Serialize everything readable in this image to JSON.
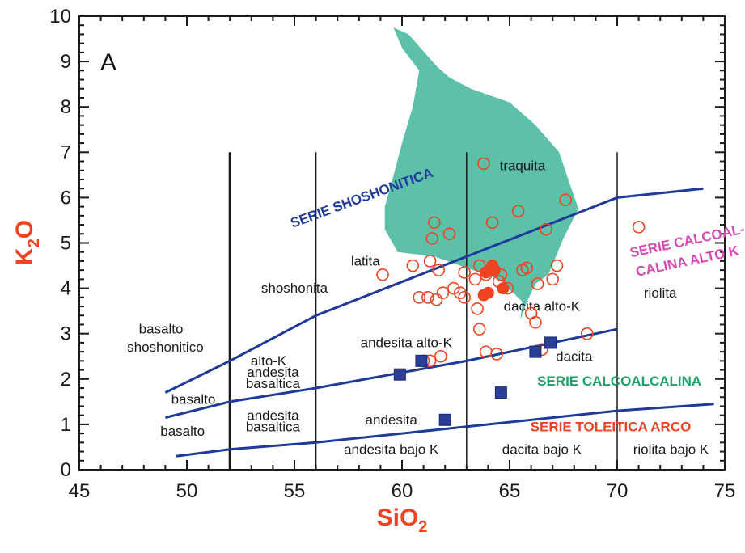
{
  "chart_data": {
    "type": "scatter",
    "panel_label": "A",
    "xlabel": "SiO",
    "xlabel_sub": "2",
    "ylabel": "K",
    "ylabel_sub": "2",
    "ylabel_tail": "O",
    "xlim": [
      45,
      75
    ],
    "ylim": [
      0,
      10
    ],
    "x_ticks": [
      45,
      50,
      55,
      60,
      65,
      70,
      75
    ],
    "y_ticks": [
      0,
      1,
      2,
      3,
      4,
      5,
      6,
      7,
      8,
      9,
      10
    ],
    "grid": false,
    "colors": {
      "axis": "#1a1a1a",
      "series_line": "#1f3a9a",
      "points": "#ee4422",
      "squares": "#2a3f95",
      "region": "#5cc1a8",
      "axis_title": "#ee4422",
      "shoshonitica": "#1f3a9a",
      "calcoalcalina_alto_k": "#d54bb3",
      "calcoalcalina": "#1aa368",
      "toleitica": "#ee4422"
    },
    "field_labels": [
      {
        "text": "basalto",
        "x": 48.8,
        "y": 3.0
      },
      {
        "text": "shoshonitico",
        "x": 49.0,
        "y": 2.6
      },
      {
        "text": "shoshonita",
        "x": 55.0,
        "y": 3.9
      },
      {
        "text": "latita",
        "x": 58.3,
        "y": 4.5
      },
      {
        "text": "traquita",
        "x": 65.6,
        "y": 6.6
      },
      {
        "text": "riolita",
        "x": 72.0,
        "y": 3.8
      },
      {
        "text": "alto-K",
        "x": 53.8,
        "y": 2.3
      },
      {
        "text": "andesita",
        "x": 54.0,
        "y": 2.05
      },
      {
        "text": "basaltica",
        "x": 54.0,
        "y": 1.8
      },
      {
        "text": "andesita alto-K",
        "x": 60.2,
        "y": 2.7
      },
      {
        "text": "dacita alto-K",
        "x": 66.5,
        "y": 3.5
      },
      {
        "text": "dacita",
        "x": 68.0,
        "y": 2.4
      },
      {
        "text": "basalto",
        "x": 50.3,
        "y": 1.45
      },
      {
        "text": "basalto",
        "x": 49.8,
        "y": 0.75
      },
      {
        "text": "andesita",
        "x": 54.0,
        "y": 1.1
      },
      {
        "text": "basaltica",
        "x": 54.0,
        "y": 0.85
      },
      {
        "text": "andesita",
        "x": 59.5,
        "y": 1.0
      },
      {
        "text": "andesita bajo K",
        "x": 59.5,
        "y": 0.35
      },
      {
        "text": "dacita bajo K",
        "x": 66.5,
        "y": 0.35
      },
      {
        "text": "riolita bajo K",
        "x": 72.5,
        "y": 0.35
      }
    ],
    "series_labels": [
      {
        "text": "SERIE SHOSHONITICA",
        "x": 58.2,
        "y": 5.9,
        "rotate": -20,
        "color_key": "shoshonitica"
      },
      {
        "text": "SERIE CALCOAL-",
        "x": 73.3,
        "y": 4.95,
        "rotate": -12,
        "color_key": "calcoalcalina_alto_k"
      },
      {
        "text": "CALINA ALTO K",
        "x": 73.3,
        "y": 4.5,
        "rotate": -12,
        "color_key": "calcoalcalina_alto_k"
      },
      {
        "text": "SERIE CALCOALCALINA",
        "x": 70.1,
        "y": 1.85,
        "rotate": 0,
        "color_key": "calcoalcalina"
      },
      {
        "text": "SERIE TOLEITICA ARCO",
        "x": 69.7,
        "y": 0.85,
        "rotate": 0,
        "color_key": "toleitica"
      }
    ],
    "vertical_lines": [
      {
        "x": 52,
        "y0": 0,
        "y1": 7.0,
        "width": 3
      },
      {
        "x": 56,
        "y0": 0,
        "y1": 7.0,
        "width": 1.5
      },
      {
        "x": 63,
        "y0": 0,
        "y1": 7.0,
        "width": 1.5
      },
      {
        "x": 70,
        "y0": 0,
        "y1": 7.0,
        "width": 1.5
      }
    ],
    "boundary_lines": [
      {
        "name": "shoshonitic",
        "x": [
          49,
          52,
          56,
          63,
          70,
          74
        ],
        "y": [
          1.7,
          2.4,
          3.4,
          4.7,
          6.0,
          6.2
        ]
      },
      {
        "name": "high-K",
        "x": [
          49,
          52,
          56,
          63,
          70
        ],
        "y": [
          1.15,
          1.5,
          1.8,
          2.4,
          3.1
        ]
      },
      {
        "name": "low-K",
        "x": [
          49.5,
          52,
          56,
          63,
          70,
          74.5
        ],
        "y": [
          0.3,
          0.45,
          0.6,
          0.95,
          1.3,
          1.45
        ]
      }
    ],
    "region_polygon": {
      "x": [
        59.6,
        60.3,
        61.6,
        62.2,
        63.2,
        65.0,
        66.2,
        67.3,
        67.8,
        68.2,
        67.5,
        66.8,
        66.2,
        65.8,
        65.5,
        65.6,
        64.5,
        63.0,
        61.5,
        59.8,
        59.2,
        59.2,
        59.5,
        60.0,
        60.5,
        60.8,
        60.0
      ],
      "y": [
        9.75,
        9.6,
        8.9,
        8.65,
        8.4,
        8.1,
        7.6,
        7.0,
        6.3,
        5.75,
        5.1,
        4.3,
        4.1,
        3.7,
        3.3,
        3.7,
        4.2,
        4.45,
        4.7,
        4.8,
        5.3,
        5.8,
        6.3,
        7.2,
        8.0,
        8.8,
        9.3
      ]
    },
    "series": [
      {
        "name": "",
        "marker": "open-circle",
        "x": [
          59.1,
          60.5,
          60.8,
          61.3,
          61.4,
          61.5,
          61.7,
          62.2,
          61.2,
          61.6,
          61.9,
          62.4,
          61.0,
          61.3,
          61.8,
          62.7,
          62.9,
          63.5,
          63.6,
          63.8,
          63.9,
          64.2,
          64.4,
          64.6,
          64.9,
          65.4,
          65.6,
          65.8,
          66.0,
          66.2,
          66.3,
          66.5,
          66.7,
          67.0,
          67.2,
          67.6,
          68.6,
          71.0,
          63.9,
          64.1,
          64.5,
          62.9,
          63.4,
          63.6
        ],
        "y": [
          4.3,
          4.5,
          3.8,
          4.6,
          5.1,
          5.45,
          4.4,
          5.2,
          3.8,
          3.75,
          3.9,
          4.0,
          2.4,
          2.4,
          2.5,
          3.9,
          3.8,
          3.55,
          3.1,
          6.75,
          2.6,
          5.45,
          2.55,
          4.3,
          4.0,
          5.7,
          4.4,
          4.45,
          3.45,
          3.25,
          4.1,
          2.65,
          5.3,
          4.2,
          4.5,
          5.95,
          3.0,
          5.35,
          4.3,
          4.4,
          4.15,
          4.35,
          4.2,
          4.5
        ]
      },
      {
        "name": "",
        "marker": "filled-circle",
        "x": [
          63.9,
          64.2,
          64.3,
          64.0,
          64.7,
          63.8
        ],
        "y": [
          4.35,
          4.5,
          4.4,
          3.9,
          4.0,
          3.85
        ]
      },
      {
        "name": "",
        "marker": "filled-square",
        "x": [
          59.9,
          60.9,
          62.0,
          64.6,
          66.2,
          66.9
        ],
        "y": [
          2.1,
          2.4,
          1.1,
          1.7,
          2.6,
          2.8
        ]
      }
    ]
  }
}
